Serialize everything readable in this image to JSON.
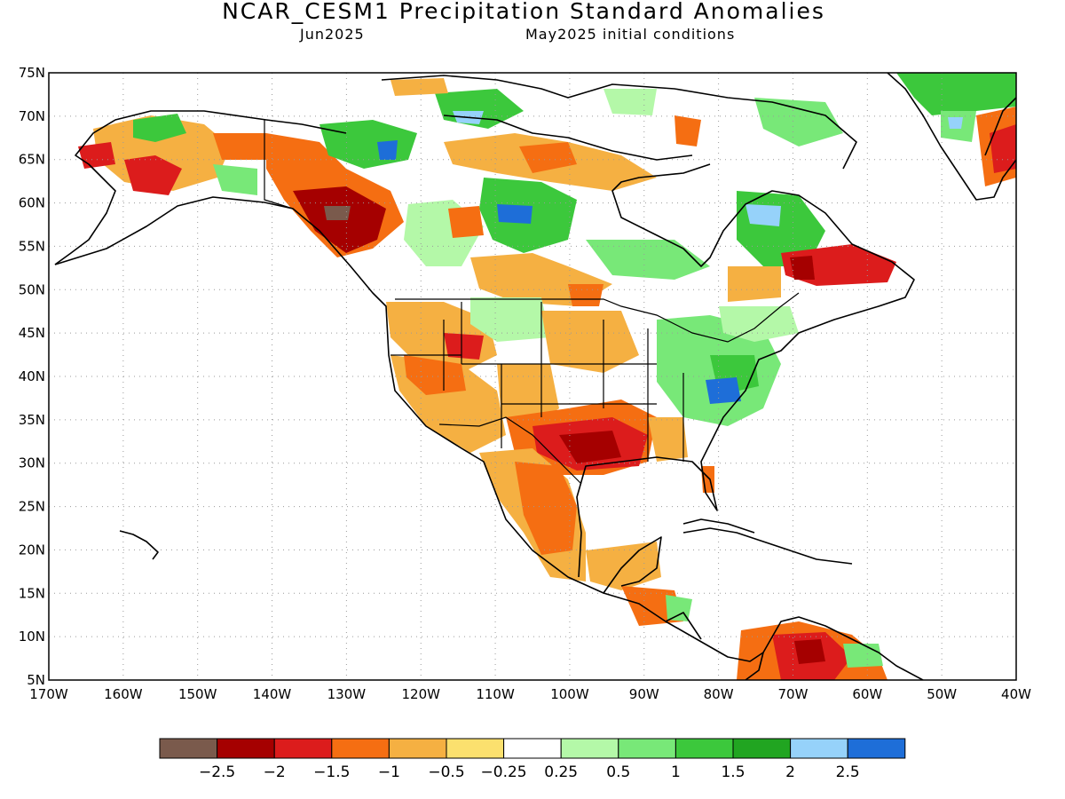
{
  "header": {
    "title": "NCAR_CESM1 Precipitation Standard Anomalies",
    "target_month": "Jun2025",
    "init": "May2025 initial conditions"
  },
  "axes": {
    "lat_labels": [
      "75N",
      "70N",
      "65N",
      "60N",
      "55N",
      "50N",
      "45N",
      "40N",
      "35N",
      "30N",
      "25N",
      "20N",
      "15N",
      "10N",
      "5N"
    ],
    "lon_labels": [
      "170W",
      "160W",
      "150W",
      "140W",
      "130W",
      "120W",
      "110W",
      "100W",
      "90W",
      "80W",
      "70W",
      "60W",
      "50W",
      "40W"
    ],
    "lat_range": [
      5,
      75
    ],
    "lon_range": [
      -170,
      -40
    ]
  },
  "legend": {
    "colors": [
      "#7a5a4c",
      "#a50000",
      "#dc1c1c",
      "#f56e12",
      "#f5b042",
      "#fbe06e",
      "#ffffff",
      "#b4f8a8",
      "#78e878",
      "#3cc83c",
      "#21a521",
      "#96d2fa",
      "#1e6ed8"
    ],
    "labels": [
      "−2.5",
      "−2",
      "−1.5",
      "−1",
      "−0.5",
      "−0.25",
      "0.25",
      "0.5",
      "1",
      "1.5",
      "2",
      "2.5"
    ]
  }
}
